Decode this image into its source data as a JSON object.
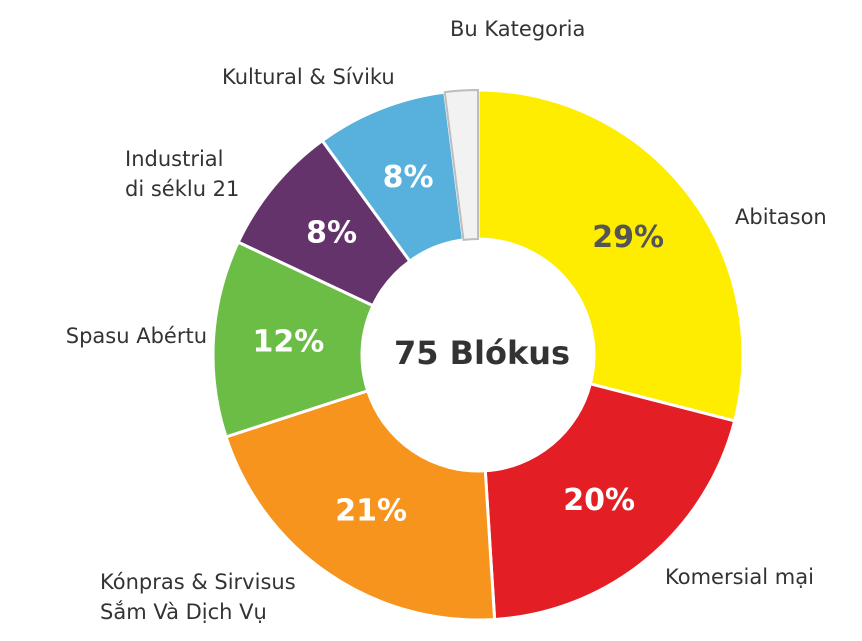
{
  "chart_data": {
    "type": "donut",
    "center_label": "75 Blókus",
    "categories": [
      "Abitason",
      "Komersial mại",
      "Kónpras & Sirvisus\nSắm Và Dịch Vụ",
      "Spasu Abértu",
      "Industrial\ndi séklu 21",
      "Kultural & Síviku",
      "Bu Kategoria"
    ],
    "values": [
      29,
      20,
      21,
      12,
      8,
      8,
      2
    ],
    "value_labels": [
      "29%",
      "20%",
      "21%",
      "12%",
      "8%",
      "8%",
      null
    ],
    "colors": [
      "#ffed00",
      "#e31e24",
      "#f7941d",
      "#6cbd45",
      "#65336b",
      "#58b0dd",
      "#f2f2f2"
    ]
  }
}
